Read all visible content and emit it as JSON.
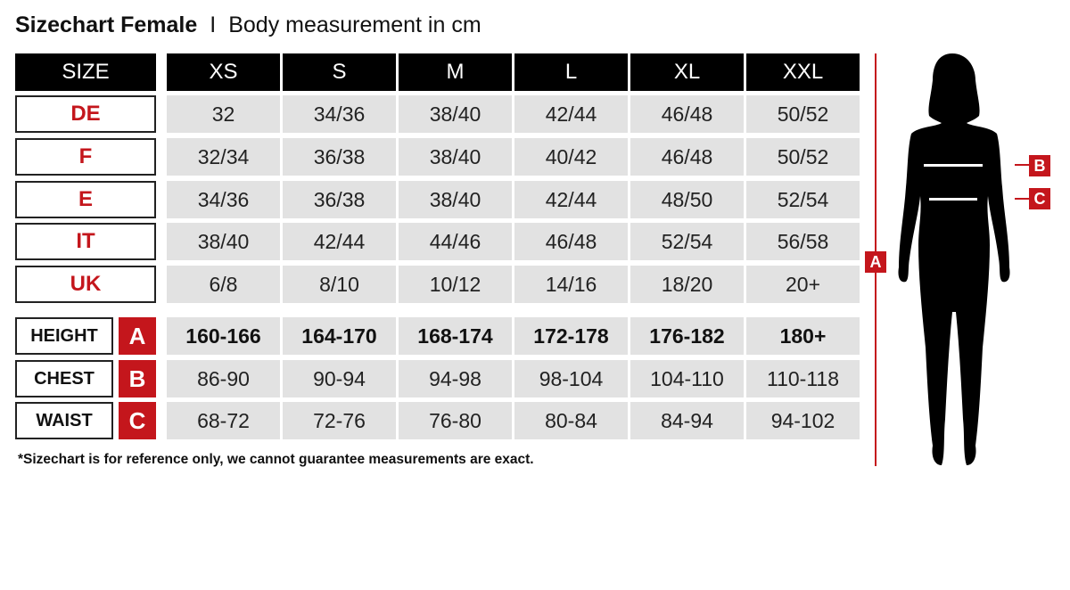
{
  "title": {
    "bold": "Sizechart Female",
    "separator": "I",
    "subtitle": "Body measurement in cm"
  },
  "colors": {
    "accent": "#c4161c",
    "header_bg": "#000000",
    "cell_bg": "#e2e2e2"
  },
  "table": {
    "corner": "SIZE",
    "sizes": [
      "XS",
      "S",
      "M",
      "L",
      "XL",
      "XXL"
    ],
    "conversion_rows": [
      {
        "label": "DE",
        "values": [
          "32",
          "34/36",
          "38/40",
          "42/44",
          "46/48",
          "50/52"
        ]
      },
      {
        "label": "F",
        "values": [
          "32/34",
          "36/38",
          "38/40",
          "40/42",
          "46/48",
          "50/52"
        ]
      },
      {
        "label": "E",
        "values": [
          "34/36",
          "36/38",
          "38/40",
          "42/44",
          "48/50",
          "52/54"
        ]
      },
      {
        "label": "IT",
        "values": [
          "38/40",
          "42/44",
          "44/46",
          "46/48",
          "52/54",
          "56/58"
        ]
      },
      {
        "label": "UK",
        "values": [
          "6/8",
          "8/10",
          "10/12",
          "14/16",
          "18/20",
          "20+"
        ]
      }
    ],
    "measurement_rows": [
      {
        "label": "HEIGHT",
        "letter": "A",
        "values": [
          "160-166",
          "164-170",
          "168-174",
          "172-178",
          "176-182",
          "180+"
        ]
      },
      {
        "label": "CHEST",
        "letter": "B",
        "values": [
          "86-90",
          "90-94",
          "94-98",
          "98-104",
          "104-110",
          "110-118"
        ]
      },
      {
        "label": "WAIST",
        "letter": "C",
        "values": [
          "68-72",
          "72-76",
          "76-80",
          "80-84",
          "84-94",
          "94-102"
        ]
      }
    ]
  },
  "note": "*Sizechart is for reference only, we cannot guarantee measurements are exact.",
  "figure": {
    "height_tag": "A",
    "chest_tag": "B",
    "waist_tag": "C"
  }
}
